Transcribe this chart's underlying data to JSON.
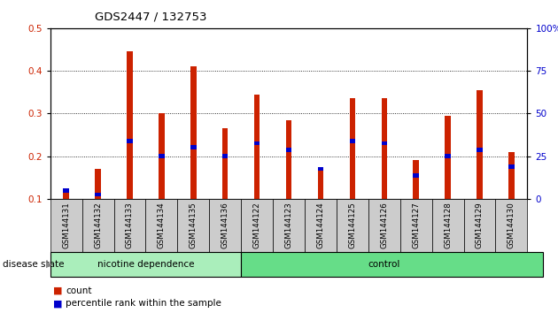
{
  "title": "GDS2447 / 132753",
  "samples": [
    "GSM144131",
    "GSM144132",
    "GSM144133",
    "GSM144134",
    "GSM144135",
    "GSM144136",
    "GSM144122",
    "GSM144123",
    "GSM144124",
    "GSM144125",
    "GSM144126",
    "GSM144127",
    "GSM144128",
    "GSM144129",
    "GSM144130"
  ],
  "count_values": [
    0.12,
    0.17,
    0.445,
    0.3,
    0.41,
    0.265,
    0.345,
    0.285,
    0.17,
    0.335,
    0.335,
    0.19,
    0.295,
    0.355,
    0.21
  ],
  "percentile_values": [
    0.12,
    0.11,
    0.235,
    0.2,
    0.22,
    0.2,
    0.23,
    0.215,
    0.17,
    0.235,
    0.23,
    0.155,
    0.2,
    0.215,
    0.175
  ],
  "nicotine_label": "nicotine dependence",
  "control_label": "control",
  "disease_state_label": "disease state",
  "count_color": "#cc2200",
  "percentile_color": "#0000cc",
  "bar_width": 0.18,
  "ylim_left": [
    0.1,
    0.5
  ],
  "yticks_left": [
    0.1,
    0.2,
    0.3,
    0.4,
    0.5
  ],
  "ylim_right": [
    0,
    100
  ],
  "yticks_right": [
    0,
    25,
    50,
    75,
    100
  ],
  "ytick_labels_right": [
    "0",
    "25",
    "50",
    "75",
    "100%"
  ],
  "nicotine_bg": "#aaeebb",
  "control_bg": "#66dd88",
  "tick_label_bg": "#cccccc",
  "legend_count": "count",
  "legend_percentile": "percentile rank within the sample"
}
